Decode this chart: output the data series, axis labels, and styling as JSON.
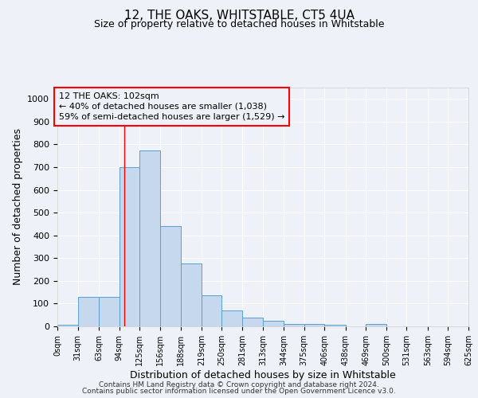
{
  "title1": "12, THE OAKS, WHITSTABLE, CT5 4UA",
  "title2": "Size of property relative to detached houses in Whitstable",
  "xlabel": "Distribution of detached houses by size in Whitstable",
  "ylabel": "Number of detached properties",
  "bar_color": "#c5d8ed",
  "bar_edge_color": "#5a9fd4",
  "bin_edges": [
    0,
    31,
    63,
    94,
    125,
    156,
    188,
    219,
    250,
    281,
    313,
    344,
    375,
    406,
    438,
    469,
    500,
    531,
    563,
    594,
    625
  ],
  "bin_labels": [
    "0sqm",
    "31sqm",
    "63sqm",
    "94sqm",
    "125sqm",
    "156sqm",
    "188sqm",
    "219sqm",
    "250sqm",
    "281sqm",
    "313sqm",
    "344sqm",
    "375sqm",
    "406sqm",
    "438sqm",
    "469sqm",
    "500sqm",
    "531sqm",
    "563sqm",
    "594sqm",
    "625sqm"
  ],
  "bar_heights": [
    8,
    128,
    128,
    700,
    775,
    440,
    275,
    135,
    70,
    40,
    25,
    12,
    12,
    8,
    0,
    10,
    0,
    0,
    0,
    0
  ],
  "ylim": [
    0,
    1050
  ],
  "yticks": [
    0,
    100,
    200,
    300,
    400,
    500,
    600,
    700,
    800,
    900,
    1000
  ],
  "red_line_x": 102,
  "annotation_line1": "12 THE OAKS: 102sqm",
  "annotation_line2": "← 40% of detached houses are smaller (1,038)",
  "annotation_line3": "59% of semi-detached houses are larger (1,529) →",
  "background_color": "#eef2f8",
  "grid_color": "#ffffff",
  "footer1": "Contains HM Land Registry data © Crown copyright and database right 2024.",
  "footer2": "Contains public sector information licensed under the Open Government Licence v3.0."
}
